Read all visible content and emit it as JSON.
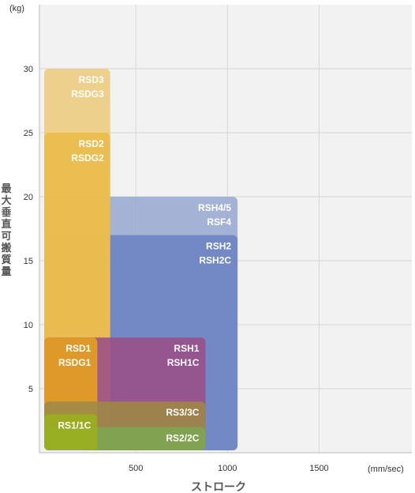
{
  "chart_data": {
    "type": "bar",
    "xlabel": "ストローク",
    "ylabel": "最大垂直可搬質量",
    "x_unit": "(mm/sec)",
    "y_unit": "(kg)",
    "xlim": [
      0,
      1000
    ],
    "ylim": [
      0,
      31
    ],
    "x_ticks": [
      "500",
      "1000",
      "1500"
    ],
    "y_ticks": [
      "5",
      "10",
      "15",
      "20",
      "25",
      "30"
    ],
    "series": [
      {
        "name": "RSH4/5\nRSF4",
        "x_start": 0,
        "x_end": 1055,
        "y_max": 20,
        "color": "#99A8D0"
      },
      {
        "name": "RSH2\nRSH2C",
        "x_start": 0,
        "x_end": 1055,
        "y_max": 17,
        "color": "#6C83C3"
      },
      {
        "name": "RSD3\nRSDG3",
        "x_start": 0,
        "x_end": 360,
        "y_max": 30,
        "color": "#ECCB7C"
      },
      {
        "name": "RSD2\nRSDG2",
        "x_start": 0,
        "x_end": 360,
        "y_max": 25,
        "color": "#E9BB48"
      },
      {
        "name": "RSH1\nRSH1C",
        "x_start": 0,
        "x_end": 880,
        "y_max": 9,
        "color": "#9A4D87"
      },
      {
        "name": "RSD1\nRSDG1",
        "x_start": 0,
        "x_end": 290,
        "y_max": 9,
        "color": "#E6A21C"
      },
      {
        "name": "RS3/3C",
        "x_start": 0,
        "x_end": 880,
        "y_max": 4,
        "color": "#9E8945"
      },
      {
        "name": "RS2/2C",
        "x_start": 0,
        "x_end": 880,
        "y_max": 2,
        "color": "#7DA651"
      },
      {
        "name": "RS1/1C",
        "x_start": 0,
        "x_end": 290,
        "y_max": 3,
        "color": "#9BB11E"
      }
    ]
  }
}
